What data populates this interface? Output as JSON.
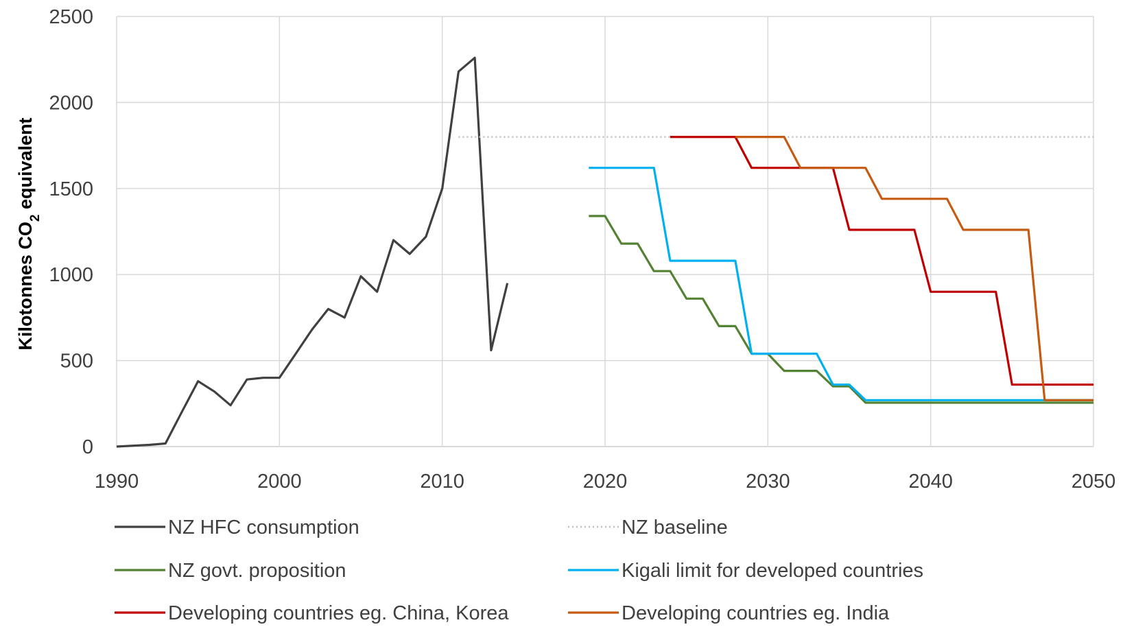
{
  "chart_data": {
    "type": "line",
    "title": "",
    "xlabel": "",
    "ylabel": "Kilotonnes CO",
    "ylabel_subscript": "2",
    "ylabel_suffix": " equivalent",
    "xlim": [
      1990,
      2050
    ],
    "ylim": [
      0,
      2500
    ],
    "x_ticks": [
      "1990",
      "2000",
      "2010",
      "2020",
      "2030",
      "2040",
      "2050"
    ],
    "y_ticks": [
      "0",
      "500",
      "1000",
      "1500",
      "2000",
      "2500"
    ],
    "grid": true,
    "legend_placement": "bottom",
    "series": [
      {
        "name": "NZ HFC consumption",
        "color": "#404040",
        "style": "solid",
        "points": [
          [
            1990,
            0
          ],
          [
            1991,
            5
          ],
          [
            1992,
            10
          ],
          [
            1993,
            18
          ],
          [
            1994,
            200
          ],
          [
            1995,
            380
          ],
          [
            1996,
            320
          ],
          [
            1997,
            240
          ],
          [
            1998,
            390
          ],
          [
            1999,
            400
          ],
          [
            2000,
            400
          ],
          [
            2001,
            540
          ],
          [
            2002,
            680
          ],
          [
            2003,
            800
          ],
          [
            2004,
            750
          ],
          [
            2005,
            990
          ],
          [
            2006,
            900
          ],
          [
            2007,
            1200
          ],
          [
            2008,
            1120
          ],
          [
            2009,
            1220
          ],
          [
            2010,
            1500
          ],
          [
            2011,
            2180
          ],
          [
            2012,
            2260
          ],
          [
            2013,
            560
          ],
          [
            2014,
            950
          ]
        ]
      },
      {
        "name": "NZ baseline",
        "color": "#bfbfbf",
        "style": "dotted",
        "points": [
          [
            2011,
            1800
          ],
          [
            2050,
            1800
          ]
        ]
      },
      {
        "name": "NZ govt. proposition",
        "color": "#548235",
        "style": "solid",
        "points": [
          [
            2019,
            1340
          ],
          [
            2020,
            1340
          ],
          [
            2021,
            1180
          ],
          [
            2022,
            1180
          ],
          [
            2023,
            1020
          ],
          [
            2024,
            1020
          ],
          [
            2025,
            860
          ],
          [
            2026,
            860
          ],
          [
            2027,
            700
          ],
          [
            2028,
            700
          ],
          [
            2029,
            540
          ],
          [
            2030,
            540
          ],
          [
            2031,
            440
          ],
          [
            2032,
            440
          ],
          [
            2033,
            440
          ],
          [
            2034,
            350
          ],
          [
            2035,
            350
          ],
          [
            2036,
            255
          ],
          [
            2050,
            255
          ]
        ]
      },
      {
        "name": "Kigali limit for developed countries",
        "color": "#00b0f0",
        "style": "solid",
        "points": [
          [
            2019,
            1620
          ],
          [
            2023,
            1620
          ],
          [
            2024,
            1080
          ],
          [
            2028,
            1080
          ],
          [
            2029,
            540
          ],
          [
            2033,
            540
          ],
          [
            2034,
            360
          ],
          [
            2035,
            360
          ],
          [
            2036,
            270
          ],
          [
            2050,
            270
          ]
        ]
      },
      {
        "name": "Developing countries eg. China, Korea",
        "color": "#c00000",
        "style": "solid",
        "points": [
          [
            2024,
            1800
          ],
          [
            2028,
            1800
          ],
          [
            2029,
            1620
          ],
          [
            2034,
            1620
          ],
          [
            2035,
            1260
          ],
          [
            2039,
            1260
          ],
          [
            2040,
            900
          ],
          [
            2044,
            900
          ],
          [
            2045,
            360
          ],
          [
            2050,
            360
          ]
        ]
      },
      {
        "name": "Developing countries eg. India",
        "color": "#c55a11",
        "style": "solid",
        "points": [
          [
            2028,
            1800
          ],
          [
            2031,
            1800
          ],
          [
            2032,
            1620
          ],
          [
            2036,
            1620
          ],
          [
            2037,
            1440
          ],
          [
            2041,
            1440
          ],
          [
            2042,
            1260
          ],
          [
            2046,
            1260
          ],
          [
            2047,
            270
          ],
          [
            2050,
            270
          ]
        ]
      }
    ]
  }
}
